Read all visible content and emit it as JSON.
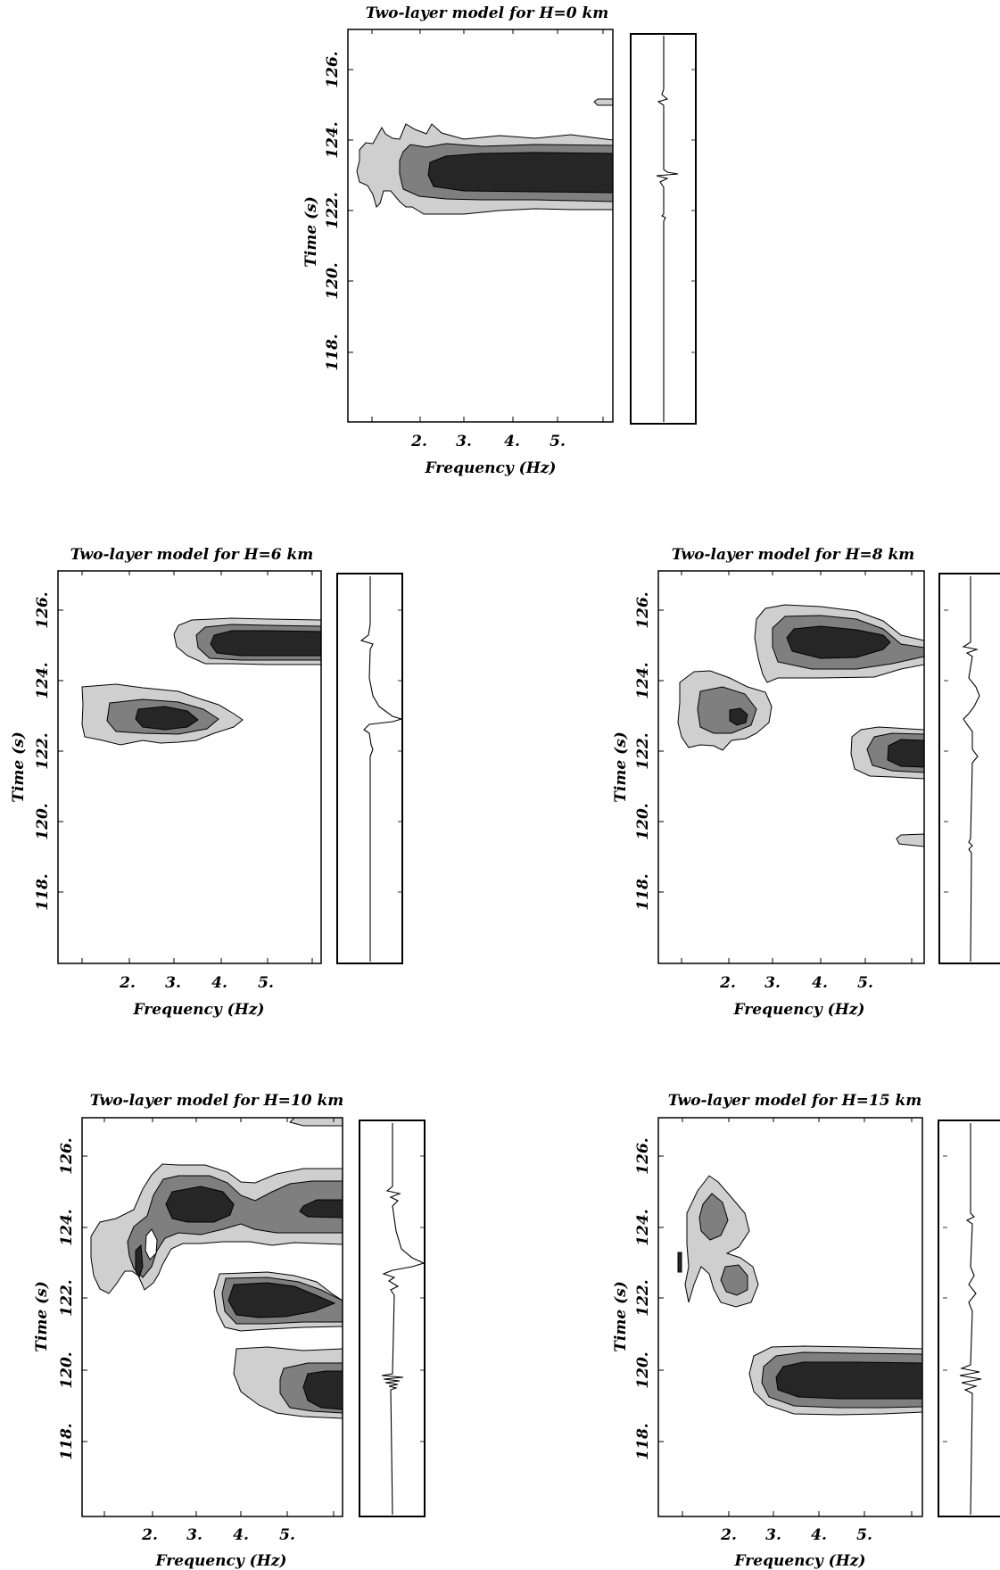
{
  "figure": {
    "panels": [
      {
        "title": "Two-layer model for H=0 km",
        "ylabel": "Time (s)",
        "xlabel": "Frequency (Hz)"
      },
      {
        "title": "Two-layer model for H=6 km",
        "ylabel": "Time (s)",
        "xlabel": "Frequency (Hz)"
      },
      {
        "title": "Two-layer model for H=8 km",
        "ylabel": "Time (s)",
        "xlabel": "Frequency (Hz)"
      },
      {
        "title": "Two-layer model for H=10 km",
        "ylabel": "Time (s)",
        "xlabel": "Frequency (Hz)"
      },
      {
        "title": "Two-layer model for H=15 km",
        "ylabel": "Time (s)",
        "xlabel": "Frequency (Hz)"
      }
    ]
  },
  "chart_data": [
    {
      "type": "heatmap",
      "title": "Two-layer model for H=0 km",
      "xlabel": "Frequency (Hz)",
      "ylabel": "Time (s)",
      "x_tick_labels": [
        "2.",
        "3.",
        "4.",
        "5."
      ],
      "x_tick_values": [
        2,
        3,
        4,
        5
      ],
      "y_tick_labels": [
        "118.",
        "120.",
        "122.",
        "124.",
        "126."
      ],
      "y_tick_values": [
        118,
        120,
        122,
        124,
        126
      ],
      "xlim": [
        1.2,
        6.2
      ],
      "ylim": [
        116,
        127
      ],
      "levels": 3,
      "energy_blobs": [
        {
          "f_start": 1.2,
          "f_end": 6.2,
          "t_center": 123.0,
          "peak_level": 3
        },
        {
          "f_start": 5.9,
          "f_end": 6.2,
          "t_center": 125.0,
          "peak_level": 1
        }
      ],
      "seismogram_arrivals_s": [
        123.0,
        125.0
      ]
    },
    {
      "type": "heatmap",
      "title": "Two-layer model for H=6 km",
      "xlabel": "Frequency (Hz)",
      "ylabel": "Time (s)",
      "x_tick_labels": [
        "2.",
        "3.",
        "4.",
        "5."
      ],
      "x_tick_values": [
        2,
        3,
        4,
        5
      ],
      "y_tick_labels": [
        "118.",
        "120.",
        "122.",
        "124.",
        "126."
      ],
      "y_tick_values": [
        118,
        120,
        122,
        124,
        126
      ],
      "xlim": [
        1.2,
        6.2
      ],
      "ylim": [
        116,
        127
      ],
      "levels": 3,
      "energy_blobs": [
        {
          "f_start": 1.2,
          "f_end": 4.5,
          "t_center": 122.8,
          "peak_level": 3
        },
        {
          "f_start": 3.0,
          "f_end": 6.2,
          "t_center": 125.0,
          "peak_level": 3
        }
      ],
      "seismogram_arrivals_s": [
        122.8,
        125.0
      ]
    },
    {
      "type": "heatmap",
      "title": "Two-layer model for H=8 km",
      "xlabel": "Frequency (Hz)",
      "ylabel": "Time (s)",
      "x_tick_labels": [
        "2.",
        "3.",
        "4.",
        "5."
      ],
      "x_tick_values": [
        2,
        3,
        4,
        5
      ],
      "y_tick_labels": [
        "118.",
        "120.",
        "122.",
        "124.",
        "126."
      ],
      "y_tick_values": [
        118,
        120,
        122,
        124,
        126
      ],
      "xlim": [
        1.2,
        6.2
      ],
      "ylim": [
        116,
        127
      ],
      "levels": 3,
      "energy_blobs": [
        {
          "f_start": 1.2,
          "f_end": 3.1,
          "t_center": 122.8,
          "peak_level": 3
        },
        {
          "f_start": 2.9,
          "f_end": 6.2,
          "t_center": 124.8,
          "peak_level": 3
        },
        {
          "f_start": 4.8,
          "f_end": 6.2,
          "t_center": 122.0,
          "peak_level": 3
        },
        {
          "f_start": 5.6,
          "f_end": 6.2,
          "t_center": 119.5,
          "peak_level": 1
        }
      ],
      "seismogram_arrivals_s": [
        119.3,
        122.8,
        124.8
      ]
    },
    {
      "type": "heatmap",
      "title": "Two-layer model for H=10 km",
      "xlabel": "Frequency (Hz)",
      "ylabel": "Time (s)",
      "x_tick_labels": [
        "2.",
        "3.",
        "4.",
        "5."
      ],
      "x_tick_values": [
        2,
        3,
        4,
        5
      ],
      "y_tick_labels": [
        "118.",
        "120.",
        "122.",
        "124.",
        "126."
      ],
      "y_tick_values": [
        118,
        120,
        122,
        124,
        126
      ],
      "xlim": [
        1.2,
        6.2
      ],
      "ylim": [
        116,
        127
      ],
      "levels": 3,
      "energy_blobs": [
        {
          "f_start": 1.2,
          "f_end": 2.3,
          "t_center": 122.8,
          "peak_level": 2
        },
        {
          "f_start": 2.0,
          "f_end": 4.6,
          "t_center": 124.6,
          "peak_level": 3
        },
        {
          "f_start": 4.7,
          "f_end": 6.2,
          "t_center": 124.6,
          "peak_level": 3
        },
        {
          "f_start": 3.3,
          "f_end": 6.0,
          "t_center": 122.0,
          "peak_level": 3
        },
        {
          "f_start": 3.9,
          "f_end": 6.2,
          "t_center": 119.2,
          "peak_level": 3
        },
        {
          "f_start": 5.5,
          "f_end": 6.2,
          "t_center": 127.0,
          "peak_level": 1
        }
      ],
      "seismogram_arrivals_s": [
        119.2,
        122.8,
        124.6
      ]
    },
    {
      "type": "heatmap",
      "title": "Two-layer model for H=15 km",
      "xlabel": "Frequency (Hz)",
      "ylabel": "Time (s)",
      "x_tick_labels": [
        "2.",
        "3.",
        "4.",
        "5."
      ],
      "x_tick_values": [
        2,
        3,
        4,
        5
      ],
      "y_tick_labels": [
        "118.",
        "120.",
        "122.",
        "124.",
        "126."
      ],
      "y_tick_values": [
        118,
        120,
        122,
        124,
        126
      ],
      "xlim": [
        1.2,
        6.2
      ],
      "ylim": [
        116,
        127
      ],
      "levels": 3,
      "energy_blobs": [
        {
          "f_start": 1.5,
          "f_end": 2.5,
          "t_center": 124.0,
          "peak_level": 2
        },
        {
          "f_start": 2.0,
          "f_end": 3.2,
          "t_center": 121.8,
          "peak_level": 2
        },
        {
          "f_start": 1.1,
          "f_end": 1.3,
          "t_center": 122.9,
          "peak_level": 3
        },
        {
          "f_start": 2.7,
          "f_end": 6.2,
          "t_center": 119.2,
          "peak_level": 3
        }
      ],
      "seismogram_arrivals_s": [
        119.2,
        121.8,
        124.0
      ]
    }
  ],
  "colors": {
    "level1": "#cfcfcf",
    "level2": "#7f7f7f",
    "level3": "#262626",
    "background": "#ffffff",
    "ink": "#000000"
  }
}
